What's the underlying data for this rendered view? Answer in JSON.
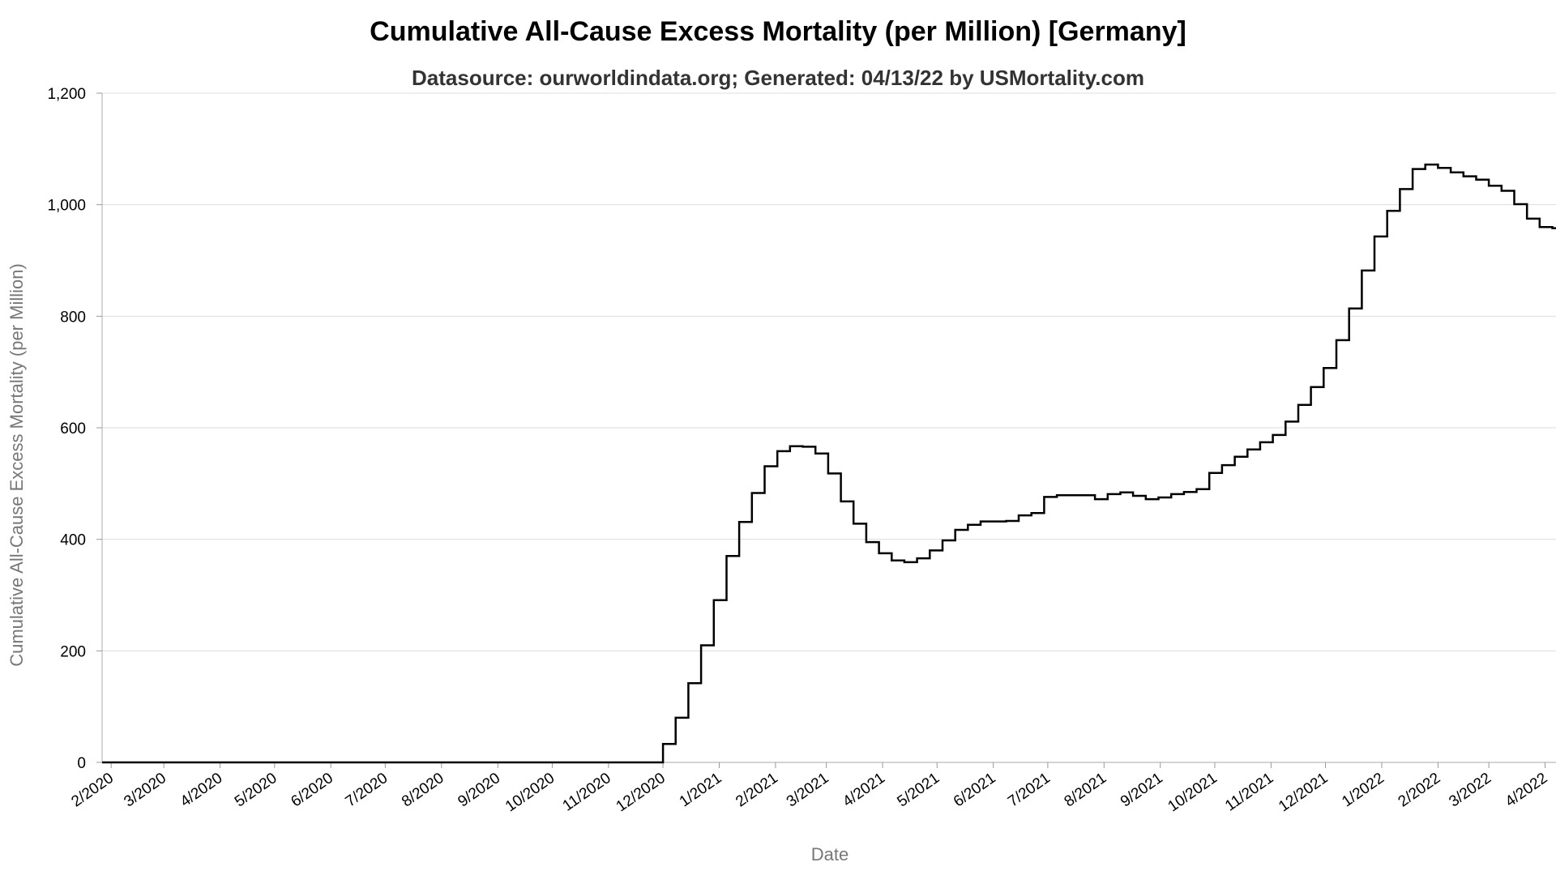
{
  "chart_data": {
    "type": "line",
    "title": "Cumulative All-Cause Excess Mortality (per Million) [Germany]",
    "subtitle": "Datasource: ourworldindata.org; Generated: 04/13/22 by USMortality.com",
    "xlabel": "Date",
    "ylabel": "Cumulative All-Cause Excess Mortality (per Million)",
    "ylim": [
      0,
      1200
    ],
    "xlim": [
      "2020-01-27",
      "2022-04-07"
    ],
    "yticks": [
      0,
      200,
      400,
      600,
      800,
      1000,
      1200
    ],
    "ytick_labels": [
      "0",
      "200",
      "400",
      "600",
      "800",
      "1,000",
      "1,200"
    ],
    "xticks": [
      "2020-02-01",
      "2020-03-01",
      "2020-04-01",
      "2020-05-01",
      "2020-06-01",
      "2020-07-01",
      "2020-08-01",
      "2020-09-01",
      "2020-10-01",
      "2020-11-01",
      "2020-12-01",
      "2021-01-01",
      "2021-02-01",
      "2021-03-01",
      "2021-04-01",
      "2021-05-01",
      "2021-06-01",
      "2021-07-01",
      "2021-08-01",
      "2021-09-01",
      "2021-10-01",
      "2021-11-01",
      "2021-12-01",
      "2022-01-01",
      "2022-02-01",
      "2022-03-01",
      "2022-04-01"
    ],
    "xtick_labels": [
      "2/2020",
      "3/2020",
      "4/2020",
      "5/2020",
      "6/2020",
      "7/2020",
      "8/2020",
      "9/2020",
      "10/2020",
      "11/2020",
      "12/2020",
      "1/2021",
      "2/2021",
      "3/2021",
      "4/2021",
      "5/2021",
      "6/2021",
      "7/2021",
      "8/2021",
      "9/2021",
      "10/2021",
      "11/2021",
      "12/2021",
      "1/2022",
      "2/2022",
      "3/2022",
      "4/2022"
    ],
    "grid": true,
    "legend": "none",
    "curve": "step",
    "series": [
      {
        "color": "#000000",
        "points": [
          [
            "2020-01-27",
            0
          ],
          [
            "2020-02-01",
            0
          ],
          [
            "2020-11-24",
            0
          ],
          [
            "2020-12-01",
            33
          ],
          [
            "2020-12-08",
            80
          ],
          [
            "2020-12-15",
            142
          ],
          [
            "2020-12-22",
            210
          ],
          [
            "2020-12-29",
            291
          ],
          [
            "2021-01-05",
            370
          ],
          [
            "2021-01-12",
            431
          ],
          [
            "2021-01-19",
            483
          ],
          [
            "2021-01-26",
            531
          ],
          [
            "2021-02-02",
            558
          ],
          [
            "2021-02-09",
            567
          ],
          [
            "2021-02-16",
            566
          ],
          [
            "2021-02-23",
            554
          ],
          [
            "2021-03-02",
            518
          ],
          [
            "2021-03-09",
            468
          ],
          [
            "2021-03-16",
            428
          ],
          [
            "2021-03-23",
            395
          ],
          [
            "2021-03-30",
            375
          ],
          [
            "2021-04-06",
            362
          ],
          [
            "2021-04-13",
            359
          ],
          [
            "2021-04-20",
            366
          ],
          [
            "2021-04-27",
            380
          ],
          [
            "2021-05-04",
            398
          ],
          [
            "2021-05-11",
            417
          ],
          [
            "2021-05-18",
            426
          ],
          [
            "2021-05-25",
            432
          ],
          [
            "2021-06-01",
            432
          ],
          [
            "2021-06-08",
            433
          ],
          [
            "2021-06-15",
            443
          ],
          [
            "2021-06-22",
            447
          ],
          [
            "2021-06-29",
            476
          ],
          [
            "2021-07-06",
            479
          ],
          [
            "2021-07-13",
            479
          ],
          [
            "2021-07-20",
            479
          ],
          [
            "2021-07-27",
            472
          ],
          [
            "2021-08-03",
            481
          ],
          [
            "2021-08-10",
            484
          ],
          [
            "2021-08-17",
            478
          ],
          [
            "2021-08-24",
            472
          ],
          [
            "2021-08-31",
            475
          ],
          [
            "2021-09-07",
            481
          ],
          [
            "2021-09-14",
            485
          ],
          [
            "2021-09-21",
            490
          ],
          [
            "2021-09-28",
            519
          ],
          [
            "2021-10-05",
            533
          ],
          [
            "2021-10-12",
            548
          ],
          [
            "2021-10-19",
            561
          ],
          [
            "2021-10-26",
            574
          ],
          [
            "2021-11-02",
            587
          ],
          [
            "2021-11-09",
            611
          ],
          [
            "2021-11-16",
            641
          ],
          [
            "2021-11-23",
            673
          ],
          [
            "2021-11-30",
            707
          ],
          [
            "2021-12-07",
            757
          ],
          [
            "2021-12-14",
            814
          ],
          [
            "2021-12-21",
            882
          ],
          [
            "2021-12-28",
            943
          ],
          [
            "2022-01-04",
            989
          ],
          [
            "2022-01-11",
            1028
          ],
          [
            "2022-01-18",
            1064
          ],
          [
            "2022-01-25",
            1072
          ],
          [
            "2022-02-01",
            1066
          ],
          [
            "2022-02-08",
            1058
          ],
          [
            "2022-02-15",
            1051
          ],
          [
            "2022-02-22",
            1045
          ],
          [
            "2022-03-01",
            1034
          ],
          [
            "2022-03-08",
            1025
          ],
          [
            "2022-03-15",
            1001
          ],
          [
            "2022-03-22",
            975
          ],
          [
            "2022-03-29",
            960
          ],
          [
            "2022-04-05",
            958
          ],
          [
            "2022-04-07",
            958
          ]
        ]
      }
    ]
  }
}
